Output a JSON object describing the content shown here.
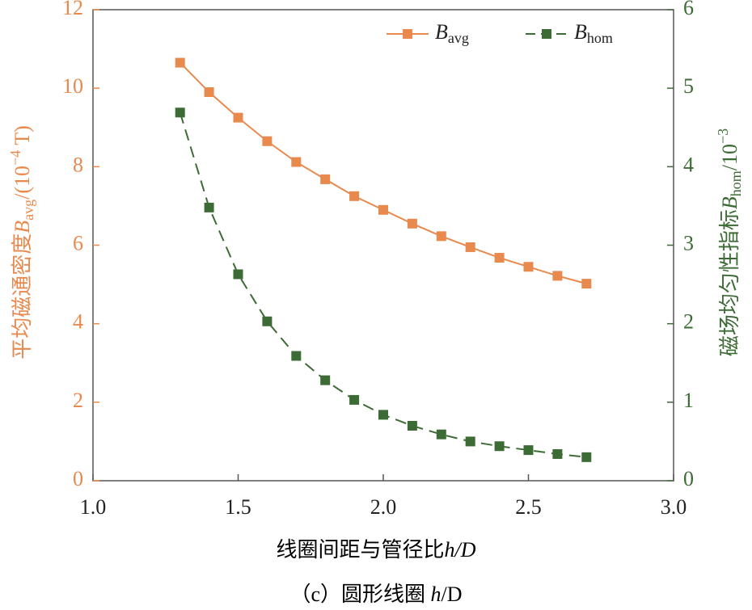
{
  "chart_data": {
    "type": "line",
    "x": [
      1.3,
      1.4,
      1.5,
      1.6,
      1.7,
      1.8,
      1.9,
      2.0,
      2.1,
      2.2,
      2.3,
      2.4,
      2.5,
      2.6,
      2.7
    ],
    "series": [
      {
        "name": "B",
        "name_sub": "avg",
        "color": "#e8894e",
        "dashed": false,
        "values": [
          10.65,
          9.9,
          9.25,
          8.65,
          8.12,
          7.68,
          7.25,
          6.9,
          6.55,
          6.23,
          5.95,
          5.68,
          5.45,
          5.22,
          5.02
        ]
      },
      {
        "name": "B",
        "name_sub": "hom",
        "color": "#3d6b35",
        "dashed": true,
        "axis": "y2",
        "values": [
          4.69,
          3.48,
          2.63,
          2.03,
          1.59,
          1.28,
          1.03,
          0.84,
          0.7,
          0.59,
          0.5,
          0.44,
          0.39,
          0.34,
          0.3
        ]
      }
    ],
    "xlim": [
      1.0,
      3.0
    ],
    "xticks": [
      {
        "value": 1.0,
        "label": "1.0"
      },
      1.5,
      {
        "value": 2.0,
        "label": "2.0"
      },
      2.5,
      {
        "value": 3.0,
        "label": "3.0"
      }
    ],
    "ylim": [
      0,
      12
    ],
    "yticks": [
      0,
      2,
      4,
      6,
      8,
      10,
      12
    ],
    "y2lim": [
      0,
      6
    ],
    "y2ticks": [
      0,
      1,
      2,
      3,
      4,
      5,
      6
    ],
    "xlabel": {
      "text": "线圈间距与管径比",
      "var": "h/D"
    },
    "ylabel": {
      "text": "平均磁通密度",
      "var": "B",
      "sub": "avg",
      "unit": "/(10",
      "sup": "−4",
      "unit_end": " T)"
    },
    "y2label": {
      "text": "磁场均匀性指标",
      "var": "B",
      "sub": "hom",
      "unit": "/10",
      "sup": "−3"
    },
    "caption": {
      "text": "（c）圆形线圈 ",
      "var": "h",
      "rest": "/D"
    },
    "grid": false
  }
}
